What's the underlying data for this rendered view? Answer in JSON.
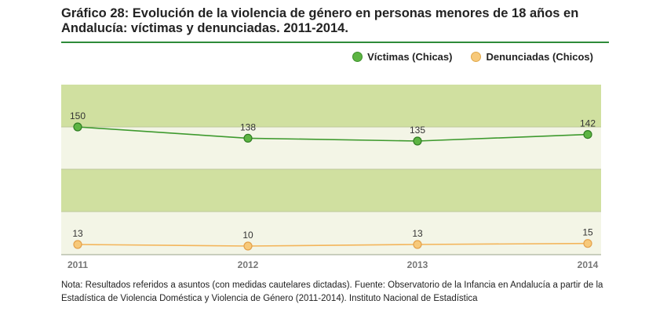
{
  "title": "Gráfico 28: Evolución de la violencia de género en personas menores de 18 años en Andalucía: víctimas y denunciadas. 2011-2014.",
  "legend": {
    "victimas": "Víctimas (Chicas)",
    "denunciadas": "Denunciadas (Chicos)"
  },
  "colors": {
    "victimas": "#5db543",
    "denunciadas": "#f7c97a",
    "band_green": "#d0e0a0",
    "band_light": "#f3f5e6",
    "rule": "#2e8b3a"
  },
  "note": "Nota: Resultados referidos a asuntos (con medidas cautelares dictadas). Fuente: Observatorio de la Infancia en Andalucía a partir de la Estadística de Violencia Doméstica y Violencia de Género (2011-2014). Instituto Nacional de Estadística",
  "chart_data": {
    "type": "line",
    "categories": [
      "2011",
      "2012",
      "2013",
      "2014"
    ],
    "series": [
      {
        "name": "Víctimas (Chicas)",
        "values": [
          150,
          138,
          135,
          142
        ]
      },
      {
        "name": "Denunciadas (Chicos)",
        "values": [
          13,
          10,
          13,
          15
        ]
      }
    ],
    "legend_position": "top-right",
    "grid": false
  }
}
